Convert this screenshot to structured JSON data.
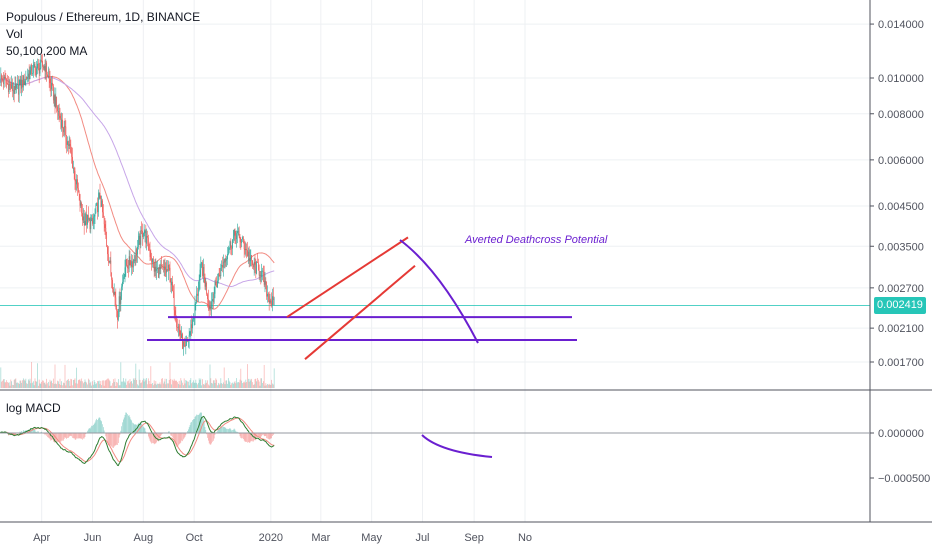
{
  "header": {
    "title": "Populous / Ethereum, 1D, BINANCE",
    "vol_label": "Vol",
    "ma_label": "50,100,200 MA"
  },
  "current_price": "0.002419",
  "macd_label": "log MACD",
  "annotation": "Averted Deathcross Potential",
  "colors": {
    "up": "#26a69a",
    "down": "#ef5350",
    "ma_fast": "#f28b82",
    "ma_slow": "#c7a6e8",
    "trend": "#6a1fd0",
    "channel": "#e53935",
    "price_line": "#26c6b8",
    "grid": "#eef0f3"
  },
  "chart_data": [
    {
      "type": "line",
      "title": "Populous / Ethereum, 1D, BINANCE",
      "y_axis_ticks": [
        "0.014000",
        "0.010000",
        "0.008000",
        "0.006000",
        "0.004500",
        "0.003500",
        "0.002700",
        "0.002100",
        "0.001700"
      ],
      "y_tick_values": [
        0.014,
        0.01,
        0.008,
        0.006,
        0.0045,
        0.0035,
        0.0027,
        0.0021,
        0.0017
      ],
      "x_axis_ticks": [
        "Apr",
        "Jun",
        "Aug",
        "Oct",
        "2020",
        "Mar",
        "May",
        "Jul",
        "Sep",
        "No"
      ],
      "y_scale": "log",
      "series": [
        {
          "x": [
            "2019-02-10",
            "2019-03-01",
            "2019-03-20",
            "2019-04-05",
            "2019-04-20",
            "2019-05-05",
            "2019-05-20",
            "2019-06-01",
            "2019-06-10",
            "2019-06-20",
            "2019-07-01",
            "2019-07-10",
            "2019-07-20",
            "2019-08-01",
            "2019-08-15",
            "2019-09-01",
            "2019-09-10",
            "2019-09-20",
            "2019-10-01",
            "2019-10-10",
            "2019-10-20",
            "2019-11-01",
            "2019-11-10",
            "2019-11-20",
            "2019-12-01",
            "2019-12-10",
            "2019-12-20",
            "2019-12-28",
            "2020-01-05"
          ],
          "y": [
            0.01,
            0.0092,
            0.0105,
            0.0108,
            0.0082,
            0.0064,
            0.0042,
            0.004,
            0.0048,
            0.0033,
            0.0023,
            0.0031,
            0.0032,
            0.0039,
            0.003,
            0.003,
            0.0022,
            0.0018,
            0.0023,
            0.0031,
            0.0024,
            0.003,
            0.0034,
            0.0038,
            0.0035,
            0.0031,
            0.003,
            0.0026,
            0.00242
          ]
        }
      ],
      "horizontal_levels": [
        0.00225,
        0.00195
      ]
    },
    {
      "type": "line",
      "title": "log MACD",
      "y_axis_ticks": [
        "0.000000",
        "−0.000500"
      ],
      "y_tick_values": [
        0,
        -0.0005
      ]
    }
  ]
}
